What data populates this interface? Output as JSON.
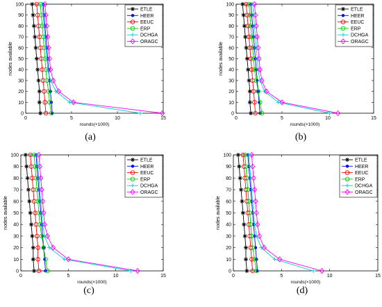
{
  "figure": {
    "captions": [
      "(a)",
      "(b)",
      "(c)",
      "(d)"
    ]
  },
  "chart_data": [
    {
      "type": "line",
      "panel": "(a)",
      "xlabel": "rounds(×1000)",
      "ylabel": "nodes available",
      "xlim": [
        0,
        15
      ],
      "ylim": [
        0,
        100
      ],
      "xticks": [
        0,
        5,
        10,
        15
      ],
      "yticks": [
        0,
        10,
        20,
        30,
        40,
        50,
        60,
        70,
        80,
        90,
        100
      ],
      "grid": false,
      "legend_position": "top-right",
      "series": [
        {
          "name": "ETLE",
          "color": "#000000",
          "marker": "star",
          "x": [
            0.7,
            0.8,
            0.9,
            1.0,
            1.1,
            1.2,
            1.3,
            1.4,
            1.5,
            1.5,
            1.6
          ],
          "y": [
            100,
            90,
            80,
            70,
            60,
            50,
            40,
            30,
            20,
            10,
            0
          ]
        },
        {
          "name": "HEER",
          "color": "#0000ff",
          "marker": "dot",
          "x": [
            1.9,
            2.0,
            2.1,
            2.2,
            2.3,
            2.4,
            2.5,
            2.6,
            2.7,
            2.8,
            2.9
          ],
          "y": [
            100,
            90,
            80,
            70,
            60,
            50,
            40,
            30,
            20,
            10,
            0
          ]
        },
        {
          "name": "EEUC",
          "color": "#ff0000",
          "marker": "circle",
          "x": [
            1.2,
            1.3,
            1.4,
            1.5,
            1.6,
            1.7,
            1.8,
            1.9,
            2.0,
            2.1,
            2.2
          ],
          "y": [
            100,
            90,
            80,
            70,
            60,
            50,
            40,
            30,
            20,
            10,
            0
          ]
        },
        {
          "name": "ERP",
          "color": "#00cc00",
          "marker": "circle",
          "x": [
            1.6,
            1.7,
            1.8,
            1.9,
            2.0,
            2.1,
            2.2,
            2.3,
            2.5,
            2.6,
            2.8
          ],
          "y": [
            100,
            90,
            80,
            70,
            60,
            50,
            40,
            30,
            20,
            10,
            0
          ]
        },
        {
          "name": "DCHGA",
          "color": "#00d0d0",
          "marker": "plus",
          "x": [
            1.8,
            1.9,
            2.0,
            2.1,
            2.2,
            2.3,
            2.4,
            2.7,
            3.3,
            4.8,
            12.5
          ],
          "y": [
            100,
            90,
            80,
            70,
            60,
            50,
            40,
            30,
            20,
            10,
            0
          ]
        },
        {
          "name": "ORAGC",
          "color": "#ff00ff",
          "marker": "diamond",
          "x": [
            2.1,
            2.2,
            2.3,
            2.4,
            2.5,
            2.6,
            2.7,
            3.0,
            3.6,
            5.2,
            14.9
          ],
          "y": [
            100,
            90,
            80,
            70,
            60,
            50,
            40,
            30,
            20,
            10,
            0
          ]
        }
      ]
    },
    {
      "type": "line",
      "panel": "(b)",
      "xlabel": "rounds(×1000)",
      "ylabel": "nodes available",
      "xlim": [
        0,
        15
      ],
      "ylim": [
        0,
        100
      ],
      "xticks": [
        0,
        5,
        10,
        15
      ],
      "yticks": [
        0,
        10,
        20,
        30,
        40,
        50,
        60,
        70,
        80,
        90,
        100
      ],
      "grid": false,
      "legend_position": "top-right",
      "series": [
        {
          "name": "ETLE",
          "color": "#000000",
          "marker": "star",
          "x": [
            0.7,
            0.8,
            0.9,
            1.0,
            1.1,
            1.2,
            1.3,
            1.4,
            1.5,
            1.5,
            1.6
          ],
          "y": [
            100,
            90,
            80,
            70,
            60,
            50,
            40,
            30,
            20,
            10,
            0
          ]
        },
        {
          "name": "HEER",
          "color": "#0000ff",
          "marker": "dot",
          "x": [
            1.6,
            1.7,
            1.8,
            1.9,
            2.0,
            2.1,
            2.2,
            2.3,
            2.4,
            2.5,
            2.6
          ],
          "y": [
            100,
            90,
            80,
            70,
            60,
            50,
            40,
            30,
            20,
            10,
            0
          ]
        },
        {
          "name": "EEUC",
          "color": "#ff0000",
          "marker": "circle",
          "x": [
            1.1,
            1.2,
            1.3,
            1.4,
            1.5,
            1.6,
            1.7,
            1.8,
            1.9,
            2.0,
            2.1
          ],
          "y": [
            100,
            90,
            80,
            70,
            60,
            50,
            40,
            30,
            20,
            10,
            0
          ]
        },
        {
          "name": "ERP",
          "color": "#00cc00",
          "marker": "circle",
          "x": [
            1.4,
            1.5,
            1.6,
            1.7,
            1.8,
            1.9,
            2.0,
            2.2,
            2.4,
            2.6,
            2.8
          ],
          "y": [
            100,
            90,
            80,
            70,
            60,
            50,
            40,
            30,
            20,
            10,
            0
          ]
        },
        {
          "name": "DCHGA",
          "color": "#00d0d0",
          "marker": "plus",
          "x": [
            1.8,
            1.9,
            2.0,
            2.1,
            2.2,
            2.3,
            2.4,
            2.6,
            3.1,
            4.6,
            10.2
          ],
          "y": [
            100,
            90,
            80,
            70,
            60,
            50,
            40,
            30,
            20,
            10,
            0
          ]
        },
        {
          "name": "ORAGC",
          "color": "#ff00ff",
          "marker": "diamond",
          "x": [
            2.0,
            2.1,
            2.2,
            2.3,
            2.4,
            2.5,
            2.6,
            2.8,
            3.3,
            5.0,
            11.1
          ],
          "y": [
            100,
            90,
            80,
            70,
            60,
            50,
            40,
            30,
            20,
            10,
            0
          ]
        }
      ]
    },
    {
      "type": "line",
      "panel": "(c)",
      "xlabel": "rounds(×1000)",
      "ylabel": "nodes available",
      "xlim": [
        0,
        15
      ],
      "ylim": [
        0,
        100
      ],
      "xticks": [
        0,
        5,
        10,
        15
      ],
      "yticks": [
        0,
        10,
        20,
        30,
        40,
        50,
        60,
        70,
        80,
        90,
        100
      ],
      "grid": false,
      "legend_position": "top-right",
      "series": [
        {
          "name": "ETLE",
          "color": "#000000",
          "marker": "star",
          "x": [
            0.5,
            0.6,
            0.7,
            0.8,
            0.9,
            1.0,
            1.1,
            1.2,
            1.3,
            1.3,
            1.4
          ],
          "y": [
            100,
            90,
            80,
            70,
            60,
            50,
            40,
            30,
            20,
            10,
            0
          ]
        },
        {
          "name": "HEER",
          "color": "#0000ff",
          "marker": "dot",
          "x": [
            1.6,
            1.7,
            1.8,
            1.9,
            2.0,
            2.1,
            2.2,
            2.3,
            2.4,
            2.5,
            2.6
          ],
          "y": [
            100,
            90,
            80,
            70,
            60,
            50,
            40,
            30,
            20,
            10,
            0
          ]
        },
        {
          "name": "EEUC",
          "color": "#ff0000",
          "marker": "circle",
          "x": [
            1.0,
            1.1,
            1.2,
            1.3,
            1.4,
            1.5,
            1.6,
            1.7,
            1.8,
            1.8,
            1.9
          ],
          "y": [
            100,
            90,
            80,
            70,
            60,
            50,
            40,
            30,
            20,
            10,
            0
          ]
        },
        {
          "name": "ERP",
          "color": "#00cc00",
          "marker": "circle",
          "x": [
            1.4,
            1.5,
            1.6,
            1.7,
            1.8,
            1.9,
            2.0,
            2.2,
            2.4,
            2.6,
            2.8
          ],
          "y": [
            100,
            90,
            80,
            70,
            60,
            50,
            40,
            30,
            20,
            10,
            0
          ]
        },
        {
          "name": "DCHGA",
          "color": "#00d0d0",
          "marker": "plus",
          "x": [
            1.7,
            1.8,
            1.9,
            2.0,
            2.1,
            2.2,
            2.3,
            2.5,
            3.0,
            4.6,
            11.6
          ],
          "y": [
            100,
            90,
            80,
            70,
            60,
            50,
            40,
            30,
            20,
            10,
            0
          ]
        },
        {
          "name": "ORAGC",
          "color": "#ff00ff",
          "marker": "diamond",
          "x": [
            1.9,
            2.0,
            2.1,
            2.2,
            2.3,
            2.4,
            2.5,
            2.8,
            3.4,
            5.0,
            12.3
          ],
          "y": [
            100,
            90,
            80,
            70,
            60,
            50,
            40,
            30,
            20,
            10,
            0
          ]
        }
      ]
    },
    {
      "type": "line",
      "panel": "(d)",
      "xlabel": "rounds(×1000)",
      "ylabel": "nodes available",
      "xlim": [
        0,
        15
      ],
      "ylim": [
        0,
        100
      ],
      "xticks": [
        0,
        5,
        10,
        15
      ],
      "yticks": [
        0,
        10,
        20,
        30,
        40,
        50,
        60,
        70,
        80,
        90,
        100
      ],
      "grid": false,
      "legend_position": "top-right",
      "series": [
        {
          "name": "ETLE",
          "color": "#000000",
          "marker": "star",
          "x": [
            0.5,
            0.6,
            0.7,
            0.8,
            0.9,
            1.0,
            1.1,
            1.2,
            1.3,
            1.3,
            1.4
          ],
          "y": [
            100,
            90,
            80,
            70,
            60,
            50,
            40,
            30,
            20,
            10,
            0
          ]
        },
        {
          "name": "HEER",
          "color": "#0000ff",
          "marker": "dot",
          "x": [
            1.5,
            1.6,
            1.7,
            1.8,
            1.9,
            2.0,
            2.1,
            2.2,
            2.3,
            2.4,
            2.5
          ],
          "y": [
            100,
            90,
            80,
            70,
            60,
            50,
            40,
            30,
            20,
            10,
            0
          ]
        },
        {
          "name": "EEUC",
          "color": "#ff0000",
          "marker": "circle",
          "x": [
            1.0,
            1.1,
            1.2,
            1.3,
            1.4,
            1.5,
            1.6,
            1.7,
            1.8,
            1.9,
            2.0
          ],
          "y": [
            100,
            90,
            80,
            70,
            60,
            50,
            40,
            30,
            20,
            10,
            0
          ]
        },
        {
          "name": "ERP",
          "color": "#00cc00",
          "marker": "circle",
          "x": [
            1.2,
            1.3,
            1.4,
            1.5,
            1.6,
            1.7,
            1.8,
            1.9,
            2.0,
            2.2,
            2.4
          ],
          "y": [
            100,
            90,
            80,
            70,
            60,
            50,
            40,
            30,
            20,
            10,
            0
          ]
        },
        {
          "name": "DCHGA",
          "color": "#00d0d0",
          "marker": "plus",
          "x": [
            1.6,
            1.7,
            1.8,
            1.9,
            2.0,
            2.1,
            2.2,
            2.4,
            2.9,
            4.3,
            8.3
          ],
          "y": [
            100,
            90,
            80,
            70,
            60,
            50,
            40,
            30,
            20,
            10,
            0
          ]
        },
        {
          "name": "ORAGC",
          "color": "#ff00ff",
          "marker": "diamond",
          "x": [
            1.9,
            2.0,
            2.1,
            2.2,
            2.3,
            2.4,
            2.5,
            2.7,
            3.2,
            4.8,
            9.2
          ],
          "y": [
            100,
            90,
            80,
            70,
            60,
            50,
            40,
            30,
            20,
            10,
            0
          ]
        }
      ]
    }
  ]
}
